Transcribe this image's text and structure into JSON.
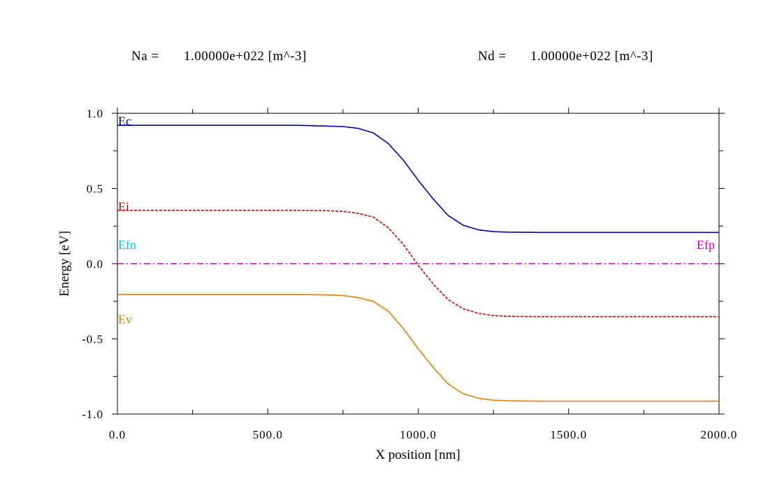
{
  "header": {
    "na_label": "Na =",
    "na_value": "1.00000e+022 [m^-3]",
    "nd_label": "Nd =",
    "nd_value": "1.00000e+022 [m^-3]"
  },
  "chart_data": {
    "type": "line",
    "xlabel": "X position [nm]",
    "ylabel": "Energy [eV]",
    "xlim": [
      0,
      2000
    ],
    "ylim": [
      -1.0,
      1.0
    ],
    "xticks": [
      0,
      500,
      1000,
      1500,
      2000
    ],
    "xtick_labels": [
      "0.0",
      "500.0",
      "1000.0",
      "1500.0",
      "2000.0"
    ],
    "yticks": [
      1.0,
      0.5,
      0.0,
      -0.5,
      -1.0
    ],
    "ytick_labels": [
      "1.0",
      "0.5",
      "0.0",
      "-0.5",
      "-1.0"
    ],
    "grid": false,
    "series": [
      {
        "name": "Ec",
        "color": "#0000aa",
        "style": "solid",
        "x": [
          0,
          600,
          700,
          750,
          800,
          850,
          900,
          950,
          1000,
          1050,
          1100,
          1150,
          1200,
          1250,
          1300,
          1400,
          2000
        ],
        "y": [
          0.92,
          0.92,
          0.915,
          0.912,
          0.9,
          0.87,
          0.8,
          0.69,
          0.555,
          0.43,
          0.32,
          0.255,
          0.225,
          0.213,
          0.21,
          0.208,
          0.208
        ]
      },
      {
        "name": "Ei",
        "color": "#cc0000",
        "style": "dashed",
        "x": [
          0,
          600,
          700,
          750,
          800,
          850,
          900,
          950,
          1000,
          1050,
          1100,
          1150,
          1200,
          1250,
          1300,
          1400,
          2000
        ],
        "y": [
          0.355,
          0.355,
          0.352,
          0.348,
          0.335,
          0.31,
          0.24,
          0.13,
          -0.01,
          -0.135,
          -0.24,
          -0.3,
          -0.33,
          -0.345,
          -0.35,
          -0.352,
          -0.352
        ]
      },
      {
        "name": "Ev",
        "color": "#e08000",
        "style": "solid",
        "x": [
          0,
          600,
          700,
          750,
          800,
          850,
          900,
          950,
          1000,
          1050,
          1100,
          1150,
          1200,
          1250,
          1300,
          1400,
          2000
        ],
        "y": [
          -0.205,
          -0.205,
          -0.208,
          -0.212,
          -0.225,
          -0.25,
          -0.315,
          -0.43,
          -0.565,
          -0.69,
          -0.8,
          -0.865,
          -0.895,
          -0.908,
          -0.912,
          -0.914,
          -0.914
        ]
      },
      {
        "name": "Efp",
        "color": "#cc00cc",
        "style": "dashdot",
        "x": [
          0,
          2000
        ],
        "y": [
          0.0,
          0.0
        ]
      }
    ],
    "labels": [
      {
        "text": "Ec",
        "color": "#0000aa",
        "anchor": "left",
        "x": 0,
        "y": 0.95
      },
      {
        "text": "Ei",
        "color": "#cc0000",
        "anchor": "left",
        "x": 0,
        "y": 0.38
      },
      {
        "text": "Efn",
        "color": "#00cccc",
        "anchor": "left",
        "x": 0,
        "y": 0.125
      },
      {
        "text": "Ev",
        "color": "#e08000",
        "anchor": "left",
        "x": 0,
        "y": -0.37
      },
      {
        "text": "Efp",
        "color": "#cc00cc",
        "anchor": "right",
        "x": 2000,
        "y": 0.125
      }
    ]
  }
}
